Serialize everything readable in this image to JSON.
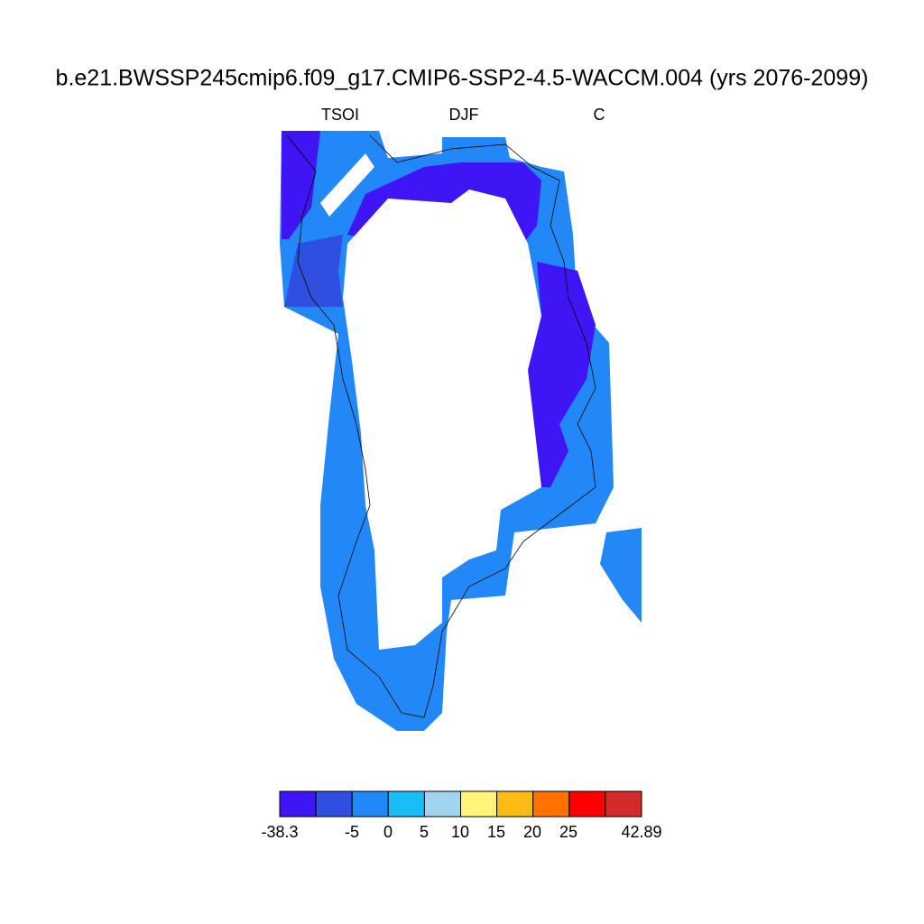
{
  "title": "b.e21.BWSSP245cmip6.f09_g17.CMIP6-SSP2-4.5-WACCM.004 (yrs 2076-2099)",
  "subtitle": {
    "left": "TSOI",
    "center": "DJF",
    "right": "C"
  },
  "colorbar": {
    "colors": [
      "#3f14f5",
      "#2f4fe0",
      "#2288f7",
      "#18bff7",
      "#a0d4f0",
      "#fff57a",
      "#ffbb15",
      "#ff7200",
      "#ff0000",
      "#d42a2a"
    ],
    "labels": [
      "-38.3",
      "-5",
      "0",
      "5",
      "10",
      "15",
      "20",
      "25",
      "42.89"
    ]
  }
}
